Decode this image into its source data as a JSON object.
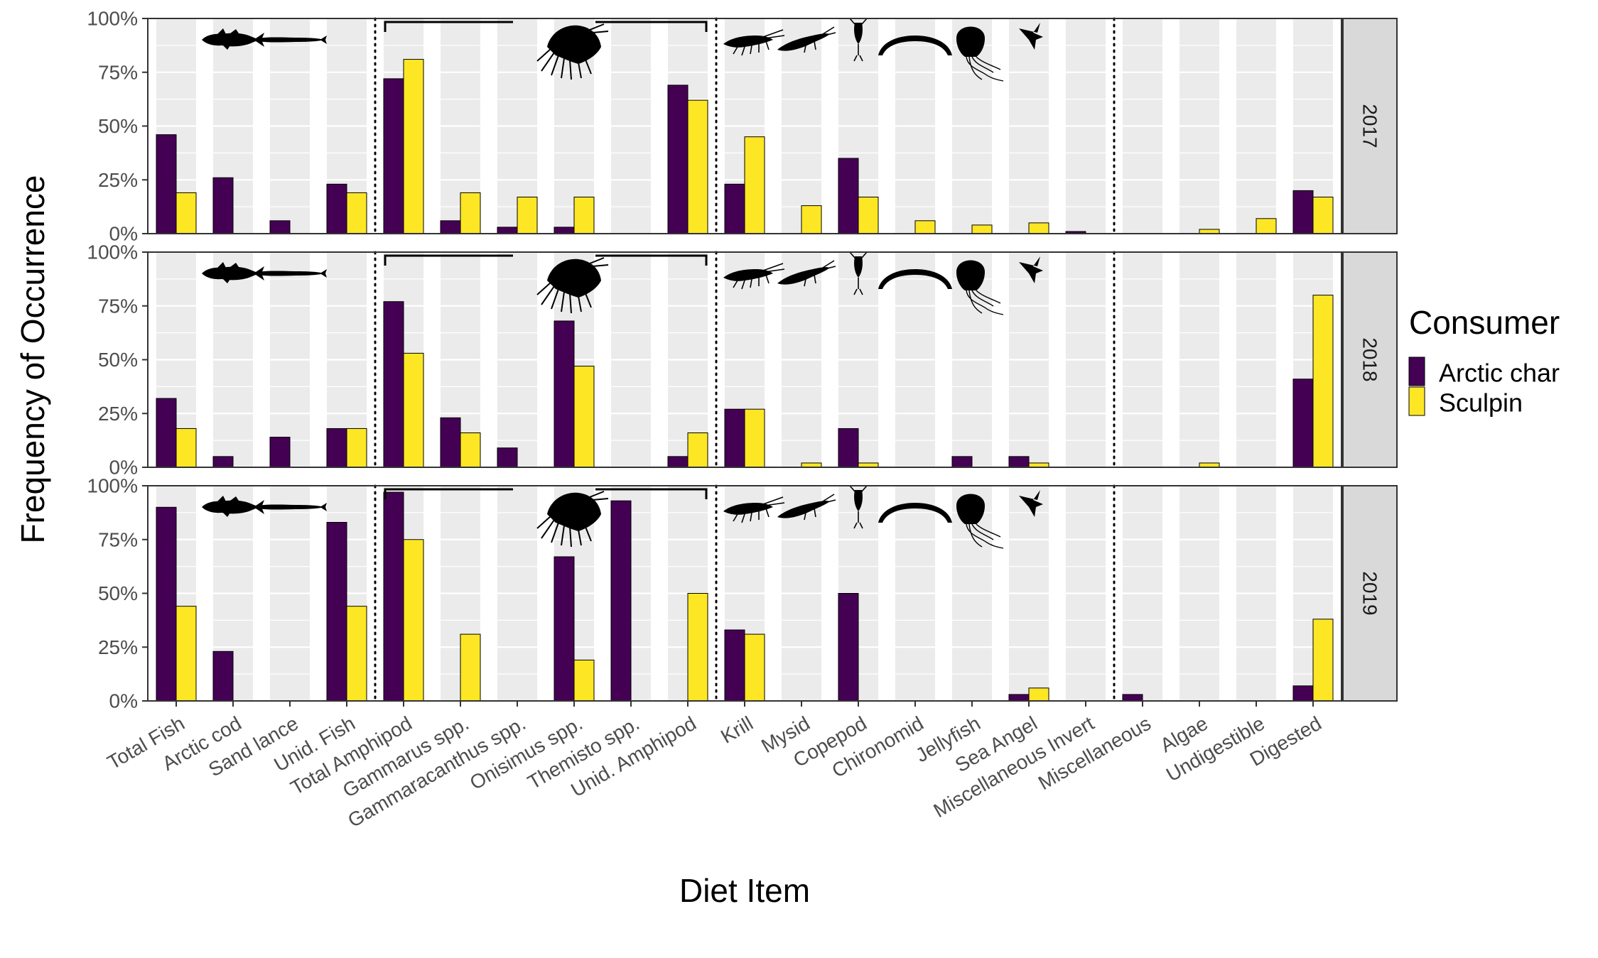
{
  "chart_data": {
    "type": "bar",
    "ylabel": "Frequency of Occurrence",
    "xlabel": "Diet Item",
    "ylim": [
      0,
      100
    ],
    "yticks": [
      "0%",
      "25%",
      "50%",
      "75%",
      "100%"
    ],
    "categories": [
      "Total Fish",
      "Arctic cod",
      "Sand lance",
      "Unid. Fish",
      "Total Amphipod",
      "Gammarus spp.",
      "Gammaracanthus spp.",
      "Onisimus spp.",
      "Themisto spp.",
      "Unid. Amphipod",
      "Krill",
      "Mysid",
      "Copepod",
      "Chironomid",
      "Jellyfish",
      "Sea Angel",
      "Miscellaneous Invert",
      "Miscellaneous",
      "Algae",
      "Undigestible",
      "Digested"
    ],
    "legend": {
      "title": "Consumer",
      "position": "right"
    },
    "series_colors": {
      "Arctic char": "#440154",
      "Sculpin": "#FDE725"
    },
    "panels": [
      {
        "facet": "2017",
        "series": [
          {
            "name": "Arctic char",
            "values": [
              46,
              26,
              6,
              23,
              72,
              6,
              3,
              3,
              0,
              69,
              23,
              0,
              35,
              0,
              0,
              0,
              1,
              0,
              0,
              0,
              20
            ]
          },
          {
            "name": "Sculpin",
            "values": [
              19,
              0,
              0,
              19,
              81,
              19,
              17,
              17,
              0,
              62,
              45,
              13,
              17,
              6,
              4,
              5,
              0,
              0,
              2,
              7,
              17
            ]
          }
        ]
      },
      {
        "facet": "2018",
        "series": [
          {
            "name": "Arctic char",
            "values": [
              32,
              5,
              14,
              18,
              77,
              23,
              9,
              68,
              0,
              5,
              27,
              0,
              18,
              0,
              5,
              5,
              0,
              0,
              0,
              0,
              41
            ]
          },
          {
            "name": "Sculpin",
            "values": [
              18,
              0,
              0,
              18,
              53,
              16,
              0,
              47,
              0,
              16,
              27,
              2,
              2,
              0,
              0,
              2,
              0,
              0,
              2,
              0,
              80
            ]
          }
        ]
      },
      {
        "facet": "2019",
        "series": [
          {
            "name": "Arctic char",
            "values": [
              90,
              23,
              0,
              83,
              97,
              0,
              0,
              67,
              93,
              0,
              33,
              0,
              50,
              0,
              0,
              3,
              0,
              3,
              0,
              0,
              7
            ]
          },
          {
            "name": "Sculpin",
            "values": [
              44,
              0,
              0,
              44,
              75,
              31,
              0,
              19,
              0,
              50,
              31,
              0,
              0,
              0,
              0,
              6,
              0,
              0,
              0,
              0,
              38
            ]
          }
        ]
      }
    ],
    "grid": true
  }
}
